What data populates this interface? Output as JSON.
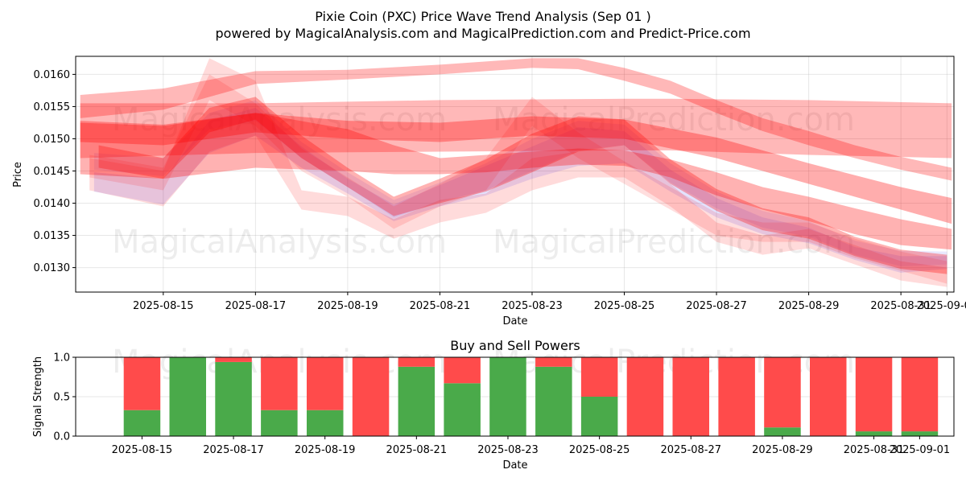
{
  "title": "Pixie Coin (PXC) Price Wave Trend Analysis (Sep 01 )",
  "subtitle": "powered by MagicalAnalysis.com and MagicalPrediction.com and Predict-Price.com",
  "watermarks": [
    "MagicalAnalysis.com",
    "MagicalPrediction.com"
  ],
  "chart_data": [
    {
      "type": "area",
      "title": "",
      "xlabel": "Date",
      "ylabel": "Price",
      "ylim": [
        0.01262,
        0.01628
      ],
      "xlim_days": [
        13.1,
        32.15
      ],
      "x_ticks": [
        {
          "day": 15,
          "label": "2025-08-15"
        },
        {
          "day": 17,
          "label": "2025-08-17"
        },
        {
          "day": 19,
          "label": "2025-08-19"
        },
        {
          "day": 21,
          "label": "2025-08-21"
        },
        {
          "day": 23,
          "label": "2025-08-23"
        },
        {
          "day": 25,
          "label": "2025-08-25"
        },
        {
          "day": 27,
          "label": "2025-08-27"
        },
        {
          "day": 29,
          "label": "2025-08-29"
        },
        {
          "day": 31,
          "label": "2025-08-31"
        },
        {
          "day": 32,
          "label": "2025-09-01"
        }
      ],
      "y_ticks": [
        {
          "value": 0.013,
          "label": "0.0130"
        },
        {
          "value": 0.0135,
          "label": "0.0135"
        },
        {
          "value": 0.014,
          "label": "0.0140"
        },
        {
          "value": 0.0145,
          "label": "0.0145"
        },
        {
          "value": 0.015,
          "label": "0.0150"
        },
        {
          "value": 0.0155,
          "label": "0.0155"
        },
        {
          "value": 0.016,
          "label": "0.0160"
        }
      ],
      "grid": true,
      "series": [
        {
          "name": "blue-wave-1",
          "color": "#6666ff",
          "opacity": 0.18,
          "x": [
            13.5,
            15,
            16,
            17,
            18,
            19,
            20,
            21,
            22,
            23,
            24,
            25,
            26,
            27,
            28,
            29,
            30,
            31,
            32
          ],
          "low": [
            0.01418,
            0.01398,
            0.01478,
            0.01505,
            0.01455,
            0.01415,
            0.01372,
            0.01395,
            0.01412,
            0.01438,
            0.01458,
            0.01462,
            0.01418,
            0.01378,
            0.01352,
            0.01338,
            0.01312,
            0.01292,
            0.01298
          ],
          "high": [
            0.01448,
            0.01438,
            0.01528,
            0.01548,
            0.01488,
            0.01438,
            0.01398,
            0.01428,
            0.01458,
            0.01488,
            0.01518,
            0.01512,
            0.01452,
            0.01408,
            0.01378,
            0.01362,
            0.01332,
            0.01318,
            0.01318
          ]
        },
        {
          "name": "blue-wave-2",
          "color": "#6666ff",
          "opacity": 0.15,
          "x": [
            13.5,
            15,
            16,
            17,
            18,
            19,
            20,
            21,
            22,
            23,
            24,
            25,
            26,
            27,
            28,
            29,
            30,
            31,
            32
          ],
          "low": [
            0.01452,
            0.01442,
            0.01515,
            0.01528,
            0.0147,
            0.01425,
            0.01378,
            0.01402,
            0.0142,
            0.0145,
            0.01482,
            0.0149,
            0.01432,
            0.01392,
            0.01362,
            0.01348,
            0.0132,
            0.01302,
            0.01305
          ],
          "high": [
            0.01478,
            0.0147,
            0.0154,
            0.0156,
            0.01495,
            0.01448,
            0.01405,
            0.01432,
            0.01462,
            0.015,
            0.01528,
            0.01522,
            0.01462,
            0.01418,
            0.01388,
            0.01372,
            0.01342,
            0.01326,
            0.01325
          ]
        },
        {
          "name": "red-band-top",
          "color": "#ff0000",
          "opacity": 0.28,
          "x": [
            13.2,
            15,
            17,
            19,
            21,
            23,
            24,
            25,
            26,
            27,
            28,
            29,
            30,
            31,
            32.1
          ],
          "low": [
            0.01532,
            0.01545,
            0.01585,
            0.01592,
            0.016,
            0.0161,
            0.01608,
            0.0159,
            0.0157,
            0.0154,
            0.01512,
            0.0149,
            0.0147,
            0.01452,
            0.01435
          ],
          "high": [
            0.01568,
            0.01578,
            0.01605,
            0.01607,
            0.01615,
            0.01625,
            0.01625,
            0.0161,
            0.0159,
            0.0156,
            0.01532,
            0.01512,
            0.0149,
            0.01472,
            0.01455
          ]
        },
        {
          "name": "red-band-flat",
          "color": "#ff0000",
          "opacity": 0.28,
          "x": [
            13.2,
            17,
            21,
            25,
            26,
            29,
            32.1
          ],
          "low": [
            0.0147,
            0.01478,
            0.0148,
            0.01482,
            0.01482,
            0.01475,
            0.0147
          ],
          "high": [
            0.01555,
            0.01555,
            0.0156,
            0.01562,
            0.01562,
            0.0156,
            0.01555
          ]
        },
        {
          "name": "red-band-mid",
          "color": "#ff0000",
          "opacity": 0.3,
          "x": [
            13.2,
            15,
            17,
            19,
            20,
            21,
            22,
            23,
            24,
            25,
            26,
            27,
            28,
            29,
            30,
            31,
            32.1
          ],
          "low": [
            0.01445,
            0.01438,
            0.01455,
            0.0145,
            0.01445,
            0.01445,
            0.01448,
            0.01455,
            0.0146,
            0.01458,
            0.0144,
            0.01412,
            0.0139,
            0.01372,
            0.01352,
            0.01335,
            0.01328
          ],
          "high": [
            0.01528,
            0.01522,
            0.0154,
            0.01515,
            0.0149,
            0.0147,
            0.01475,
            0.0148,
            0.01485,
            0.01482,
            0.01468,
            0.01448,
            0.01425,
            0.0141,
            0.01392,
            0.01375,
            0.0136
          ]
        },
        {
          "name": "red-band-diag",
          "color": "#ff0000",
          "opacity": 0.32,
          "x": [
            13.2,
            15,
            17,
            19,
            21,
            23,
            25,
            27,
            29,
            31,
            32.1
          ],
          "low": [
            0.01495,
            0.0149,
            0.0151,
            0.015,
            0.01495,
            0.01505,
            0.015,
            0.0147,
            0.0143,
            0.0139,
            0.01368
          ],
          "high": [
            0.01525,
            0.0152,
            0.0154,
            0.01528,
            0.01525,
            0.01535,
            0.0153,
            0.01502,
            0.01462,
            0.01425,
            0.01408
          ]
        },
        {
          "name": "red-wave-1",
          "color": "#ff0000",
          "opacity": 0.3,
          "x": [
            13.6,
            15,
            16,
            17,
            18,
            19,
            20,
            21,
            22,
            23,
            24,
            25,
            26,
            27,
            28,
            29,
            30,
            31,
            32
          ],
          "low": [
            0.01455,
            0.01438,
            0.0151,
            0.0153,
            0.0147,
            0.01425,
            0.0138,
            0.014,
            0.01418,
            0.01448,
            0.0148,
            0.0149,
            0.0143,
            0.01388,
            0.01358,
            0.01345,
            0.01318,
            0.01298,
            0.0129
          ],
          "high": [
            0.0149,
            0.0147,
            0.01548,
            0.01565,
            0.01505,
            0.01455,
            0.0141,
            0.01438,
            0.01468,
            0.01508,
            0.01535,
            0.0153,
            0.01468,
            0.01422,
            0.01392,
            0.01378,
            0.01348,
            0.01328,
            0.0132
          ]
        },
        {
          "name": "red-wave-2",
          "color": "#ff0000",
          "opacity": 0.14,
          "x": [
            13.4,
            15,
            16,
            17,
            18,
            19,
            20,
            21,
            22,
            23,
            24,
            25,
            26,
            27,
            28,
            29,
            30,
            31,
            32
          ],
          "low": [
            0.0142,
            0.01395,
            0.0148,
            0.01505,
            0.0139,
            0.0138,
            0.01345,
            0.0137,
            0.01385,
            0.0142,
            0.0144,
            0.0144,
            0.01395,
            0.0134,
            0.0132,
            0.0133,
            0.01305,
            0.0128,
            0.0127
          ],
          "high": [
            0.0147,
            0.0145,
            0.01625,
            0.0159,
            0.0142,
            0.0141,
            0.01375,
            0.01405,
            0.01415,
            0.0147,
            0.0148,
            0.0149,
            0.0143,
            0.0137,
            0.0135,
            0.0136,
            0.01335,
            0.0131,
            0.013
          ]
        },
        {
          "name": "red-wave-3",
          "color": "#ff0000",
          "opacity": 0.13,
          "x": [
            13.4,
            15,
            16,
            17,
            18,
            19,
            20,
            21,
            22,
            23,
            24,
            25,
            26,
            27,
            28,
            29,
            30,
            31,
            32
          ],
          "low": [
            0.0144,
            0.0142,
            0.0156,
            0.0152,
            0.0145,
            0.0141,
            0.0136,
            0.01395,
            0.0142,
            0.0152,
            0.0147,
            0.0143,
            0.0139,
            0.0135,
            0.0134,
            0.0134,
            0.01315,
            0.01295,
            0.01275
          ],
          "high": [
            0.01475,
            0.01455,
            0.016,
            0.01555,
            0.01485,
            0.0144,
            0.01395,
            0.0143,
            0.0147,
            0.01565,
            0.0151,
            0.01465,
            0.01425,
            0.01385,
            0.0137,
            0.0137,
            0.01345,
            0.01325,
            0.0131
          ]
        }
      ]
    },
    {
      "type": "bar",
      "title": "Buy and Sell Powers",
      "xlabel": "Date",
      "ylabel": "Signal Strength",
      "ylim": [
        0,
        1
      ],
      "y_ticks": [
        {
          "value": 0.0,
          "label": "0.0"
        },
        {
          "value": 0.5,
          "label": "0.5"
        },
        {
          "value": 1.0,
          "label": "1.0"
        }
      ],
      "x_ticks": [
        {
          "day": 15,
          "label": "2025-08-15"
        },
        {
          "day": 17,
          "label": "2025-08-17"
        },
        {
          "day": 19,
          "label": "2025-08-19"
        },
        {
          "day": 21,
          "label": "2025-08-21"
        },
        {
          "day": 23,
          "label": "2025-08-23"
        },
        {
          "day": 25,
          "label": "2025-08-25"
        },
        {
          "day": 27,
          "label": "2025-08-27"
        },
        {
          "day": 29,
          "label": "2025-08-29"
        },
        {
          "day": 31,
          "label": "2025-08-31"
        },
        {
          "day": 32,
          "label": "2025-09-01"
        }
      ],
      "xlim_days": [
        13.55,
        32.75
      ],
      "buy_color": "#4aaa4a",
      "sell_color": "#ff4b4b",
      "days": [
        15,
        16,
        17,
        18,
        19,
        20,
        21,
        22,
        23,
        24,
        25,
        26,
        27,
        28,
        29,
        30,
        31,
        32
      ],
      "series": [
        {
          "name": "Buy",
          "values": [
            0.33,
            1.0,
            0.94,
            0.33,
            0.33,
            0.0,
            0.88,
            0.67,
            1.0,
            0.88,
            0.5,
            0.0,
            0.0,
            0.0,
            0.11,
            0.0,
            0.06,
            0.06
          ]
        },
        {
          "name": "Sell",
          "values": [
            0.67,
            0.0,
            0.06,
            0.67,
            0.67,
            1.0,
            0.12,
            0.33,
            0.0,
            0.12,
            0.5,
            1.0,
            1.0,
            1.0,
            0.89,
            1.0,
            0.94,
            0.94
          ]
        }
      ]
    }
  ]
}
